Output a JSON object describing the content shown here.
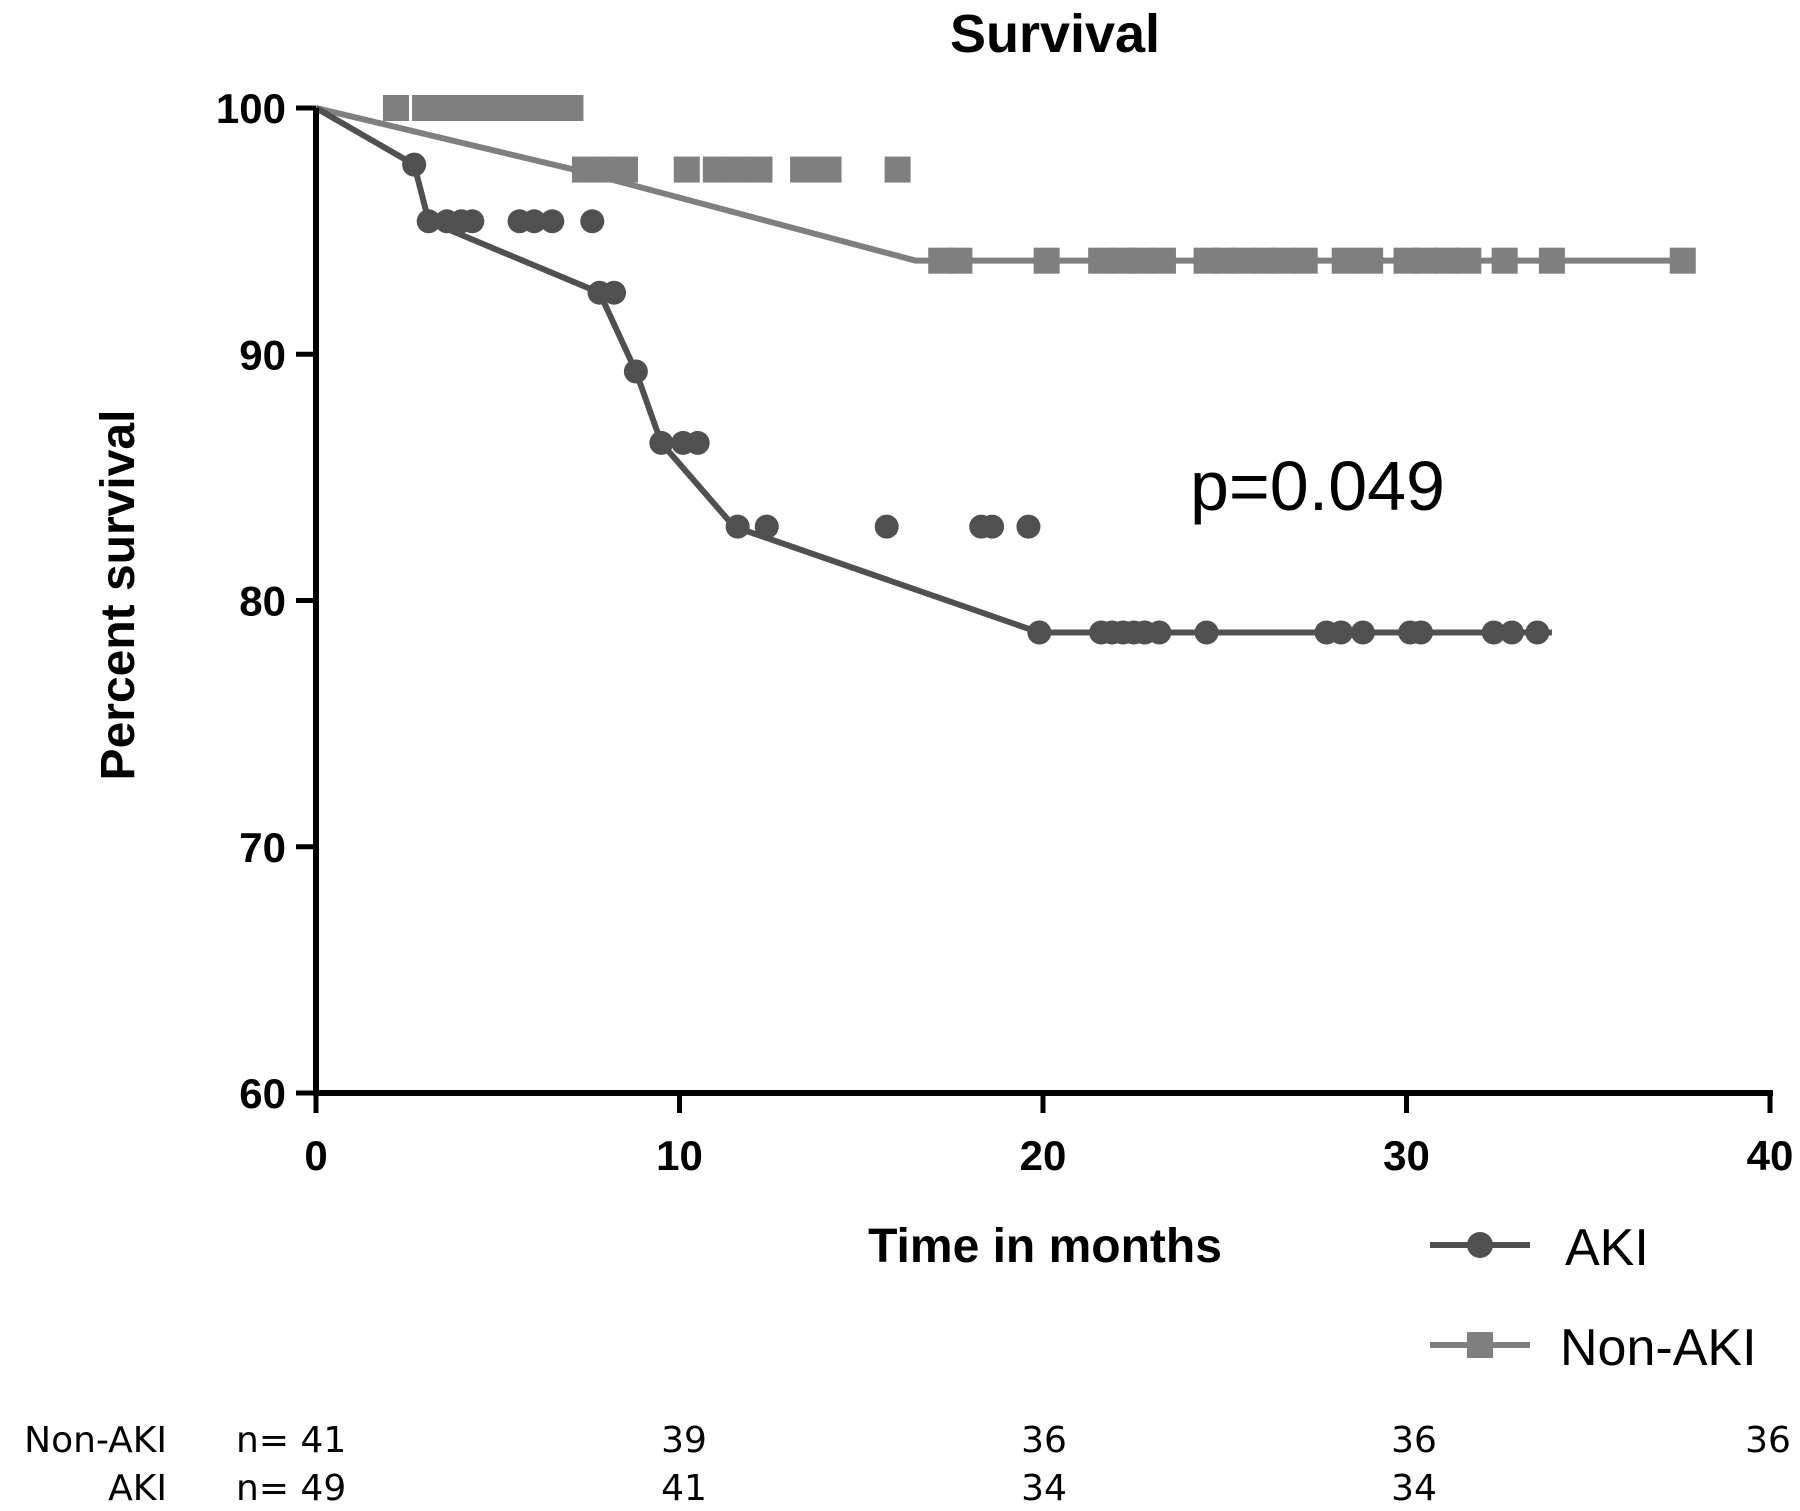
{
  "chart_data": {
    "type": "line",
    "title": "Survival",
    "xlabel": "Time in months",
    "ylabel": "Percent survival",
    "xlim": [
      0,
      40
    ],
    "ylim": [
      60,
      100
    ],
    "x_ticks": [
      "0",
      "10",
      "20",
      "30",
      "40"
    ],
    "y_ticks": [
      "60",
      "70",
      "80",
      "90",
      "100"
    ],
    "annotation": "p=0.049",
    "legend_position": "bottom-right",
    "series": [
      {
        "name": "AKI",
        "color": "#505050",
        "marker": "circle",
        "steps": [
          [
            0,
            100
          ],
          [
            2.7,
            97.7
          ],
          [
            3.1,
            95.4
          ],
          [
            7.8,
            92.5
          ],
          [
            8.8,
            89.3
          ],
          [
            9.5,
            86.4
          ],
          [
            11.5,
            83
          ],
          [
            19.9,
            78.7
          ],
          [
            34,
            78.7
          ]
        ],
        "censors": [
          [
            2.7,
            97.7
          ],
          [
            3.1,
            95.4
          ],
          [
            3.6,
            95.4
          ],
          [
            4.0,
            95.4
          ],
          [
            4.3,
            95.4
          ],
          [
            5.6,
            95.4
          ],
          [
            6.0,
            95.4
          ],
          [
            6.5,
            95.4
          ],
          [
            7.6,
            95.4
          ],
          [
            7.8,
            92.5
          ],
          [
            8.2,
            92.5
          ],
          [
            8.8,
            89.3
          ],
          [
            9.5,
            86.4
          ],
          [
            10.1,
            86.4
          ],
          [
            10.5,
            86.4
          ],
          [
            11.6,
            83
          ],
          [
            12.4,
            83
          ],
          [
            15.7,
            83
          ],
          [
            18.3,
            83
          ],
          [
            18.6,
            83
          ],
          [
            19.6,
            83
          ],
          [
            19.9,
            78.7
          ],
          [
            21.6,
            78.7
          ],
          [
            21.9,
            78.7
          ],
          [
            22.2,
            78.7
          ],
          [
            22.5,
            78.7
          ],
          [
            22.8,
            78.7
          ],
          [
            23.2,
            78.7
          ],
          [
            24.5,
            78.7
          ],
          [
            27.8,
            78.7
          ],
          [
            28.2,
            78.7
          ],
          [
            28.8,
            78.7
          ],
          [
            30.1,
            78.7
          ],
          [
            30.4,
            78.7
          ],
          [
            32.4,
            78.7
          ],
          [
            32.9,
            78.7
          ],
          [
            33.6,
            78.7
          ]
        ]
      },
      {
        "name": "Non-AKI",
        "color": "#7f7f7f",
        "marker": "square",
        "steps": [
          [
            0,
            100
          ],
          [
            7.1,
            97.5
          ],
          [
            16.5,
            93.8
          ],
          [
            37.6,
            93.8
          ]
        ],
        "censors": [
          [
            2.2,
            100
          ],
          [
            3.0,
            100
          ],
          [
            3.5,
            100
          ],
          [
            4.0,
            100
          ],
          [
            4.6,
            100
          ],
          [
            5.0,
            100
          ],
          [
            5.5,
            100
          ],
          [
            6.0,
            100
          ],
          [
            6.6,
            100
          ],
          [
            7.0,
            100
          ],
          [
            7.4,
            97.5
          ],
          [
            7.9,
            97.5
          ],
          [
            8.5,
            97.5
          ],
          [
            10.2,
            97.5
          ],
          [
            11.0,
            97.5
          ],
          [
            11.6,
            97.5
          ],
          [
            12.2,
            97.5
          ],
          [
            13.4,
            97.5
          ],
          [
            14.1,
            97.5
          ],
          [
            16.0,
            97.5
          ],
          [
            17.2,
            93.8
          ],
          [
            17.7,
            93.8
          ],
          [
            20.1,
            93.8
          ],
          [
            21.6,
            93.8
          ],
          [
            22.2,
            93.8
          ],
          [
            22.7,
            93.8
          ],
          [
            23.3,
            93.8
          ],
          [
            24.5,
            93.8
          ],
          [
            25.0,
            93.8
          ],
          [
            25.5,
            93.8
          ],
          [
            26.1,
            93.8
          ],
          [
            26.6,
            93.8
          ],
          [
            27.2,
            93.8
          ],
          [
            28.3,
            93.8
          ],
          [
            29.0,
            93.8
          ],
          [
            30.0,
            93.8
          ],
          [
            30.5,
            93.8
          ],
          [
            31.1,
            93.8
          ],
          [
            31.7,
            93.8
          ],
          [
            32.7,
            93.8
          ],
          [
            34.0,
            93.8
          ],
          [
            37.6,
            93.8
          ]
        ]
      }
    ],
    "risk_table": {
      "rows": [
        {
          "label": "Non-AKI",
          "values": [
            "n= 41",
            "39",
            "36",
            "36",
            "36"
          ]
        },
        {
          "label": "AKI",
          "values": [
            "n= 49",
            "41",
            "34",
            "34"
          ]
        }
      ]
    }
  }
}
